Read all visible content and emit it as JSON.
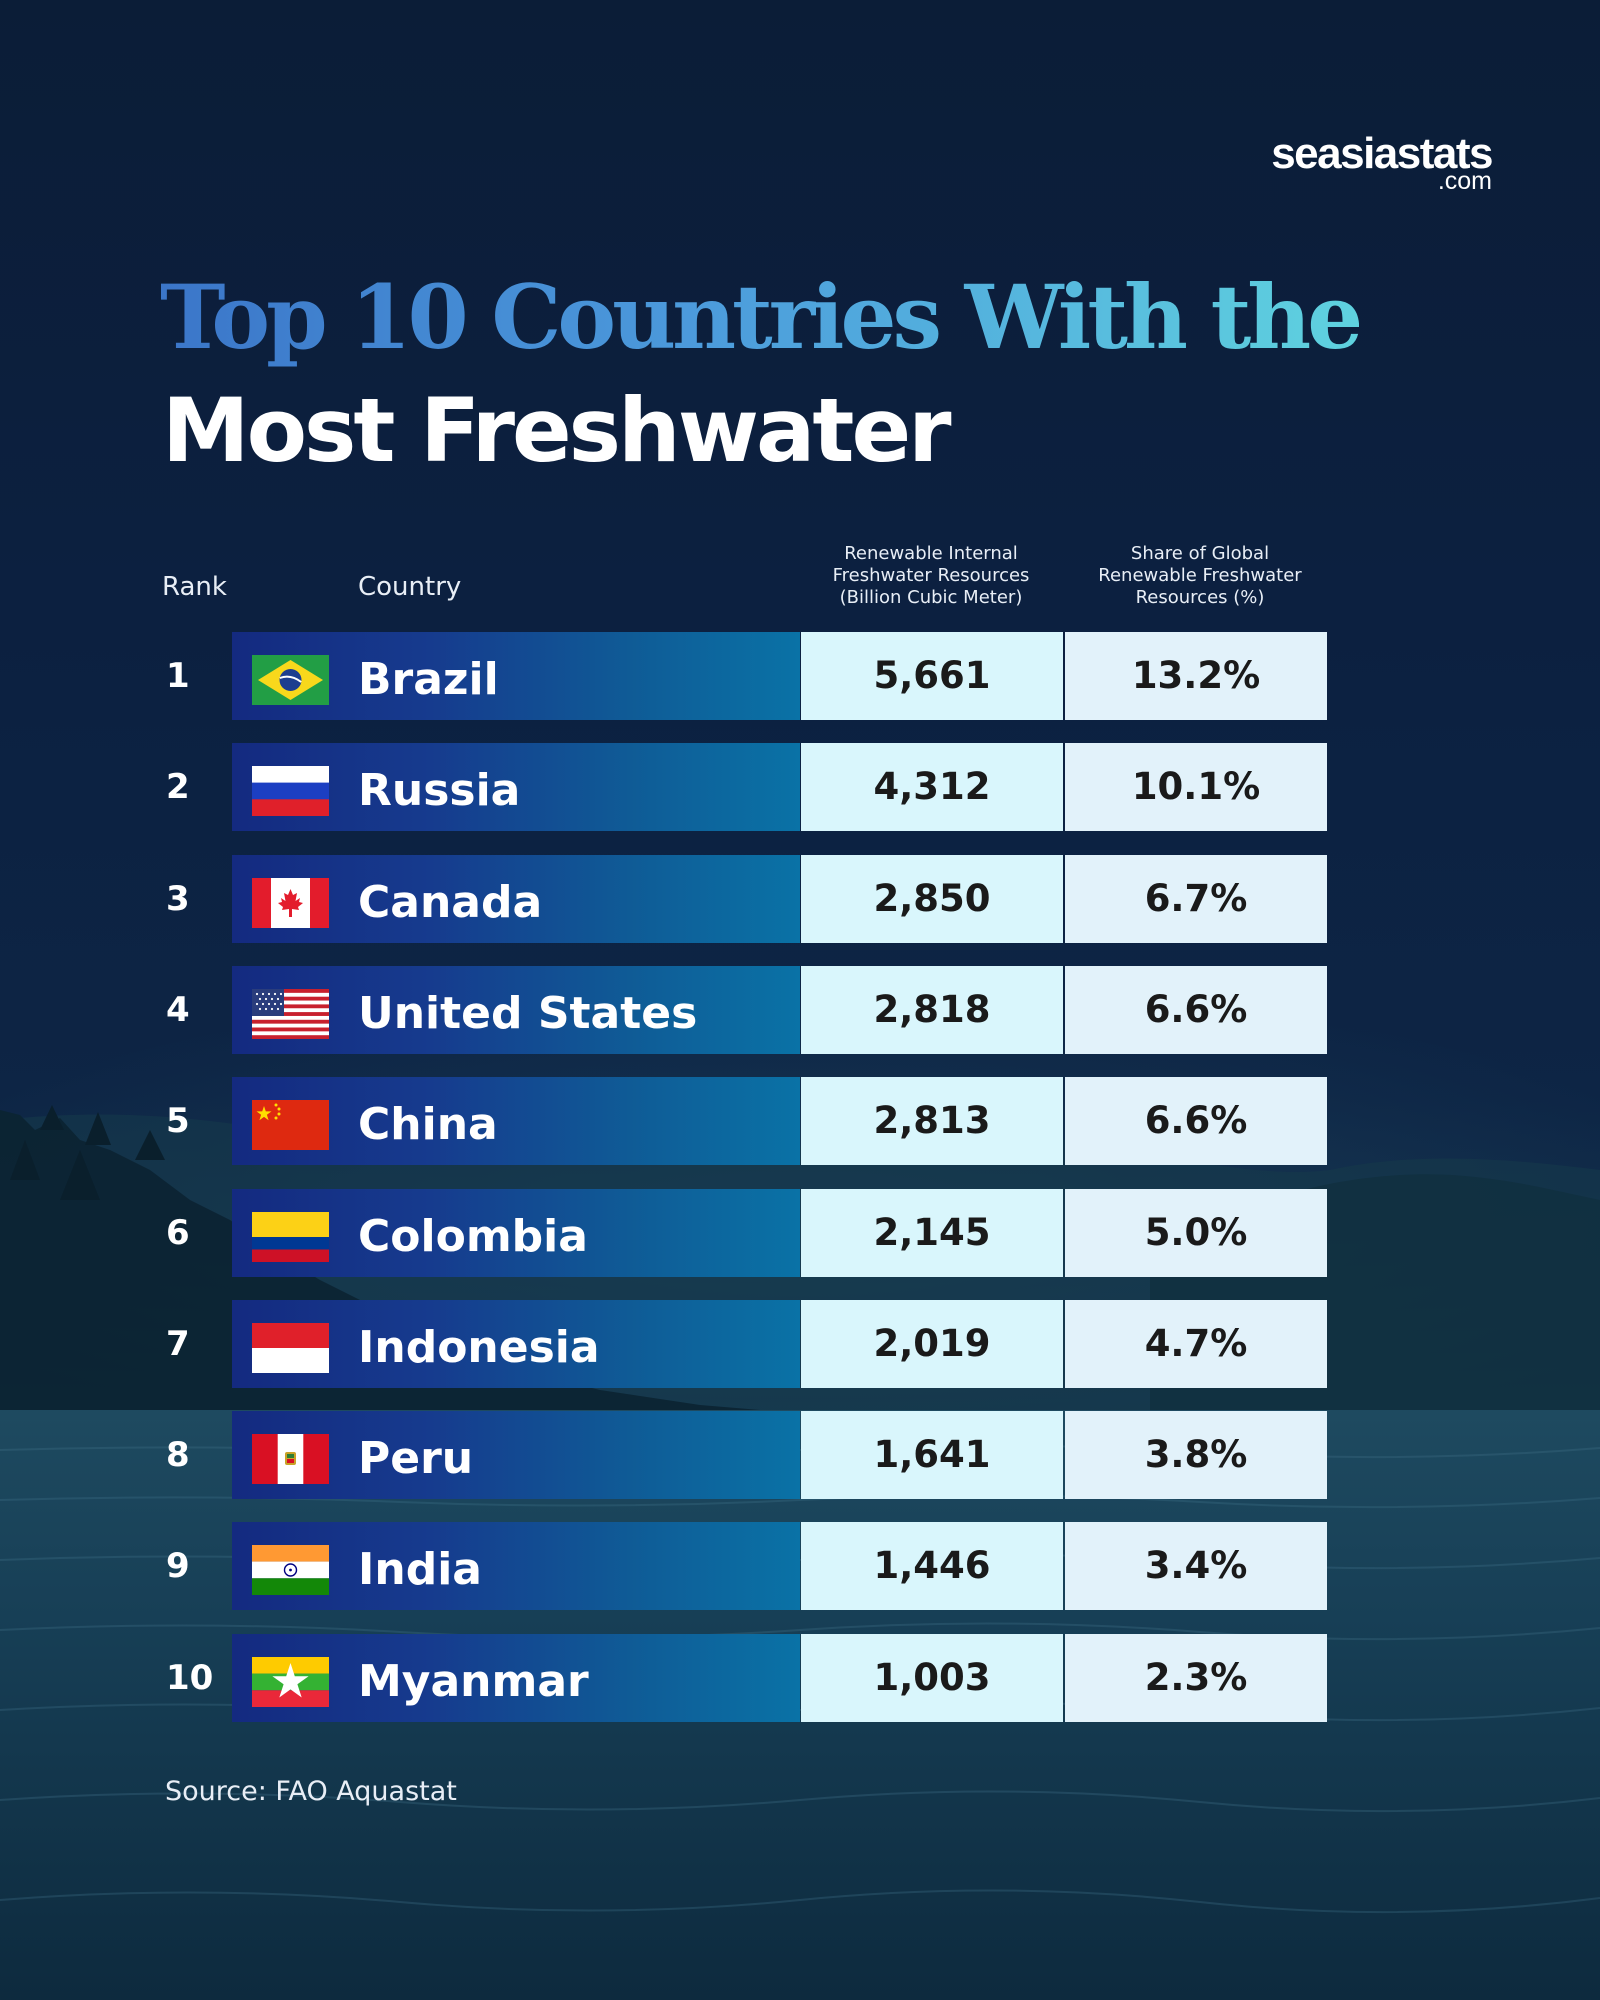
{
  "brand": {
    "name": "seasiastats",
    "domain": ".com"
  },
  "title": {
    "line1": "Top 10 Countries With the",
    "line2": "Most Freshwater"
  },
  "headers": {
    "rank": "Rank",
    "country": "Country",
    "resources": "Renewable Internal\nFreshwater Resources\n(Billion Cubic Meter)",
    "share": "Share of Global\nRenewable Freshwater\nResources (%)"
  },
  "source": "Source: FAO Aquastat",
  "chart_data": {
    "type": "table",
    "columns": [
      "Rank",
      "Country",
      "Renewable Internal Freshwater Resources (Billion Cubic Meter)",
      "Share of Global Renewable Freshwater Resources (%)"
    ],
    "rows": [
      {
        "rank": "1",
        "country": "Brazil",
        "resources": "5,661",
        "share": "13.2%",
        "flag": "brazil-flag"
      },
      {
        "rank": "2",
        "country": "Russia",
        "resources": "4,312",
        "share": "10.1%",
        "flag": "russia-flag"
      },
      {
        "rank": "3",
        "country": "Canada",
        "resources": "2,850",
        "share": "6.7%",
        "flag": "canada-flag"
      },
      {
        "rank": "4",
        "country": "United States",
        "resources": "2,818",
        "share": "6.6%",
        "flag": "united-states-flag"
      },
      {
        "rank": "5",
        "country": "China",
        "resources": "2,813",
        "share": "6.6%",
        "flag": "china-flag"
      },
      {
        "rank": "6",
        "country": "Colombia",
        "resources": "2,145",
        "share": "5.0%",
        "flag": "colombia-flag"
      },
      {
        "rank": "7",
        "country": "Indonesia",
        "resources": "2,019",
        "share": "4.7%",
        "flag": "indonesia-flag"
      },
      {
        "rank": "8",
        "country": "Peru",
        "resources": "1,641",
        "share": "3.8%",
        "flag": "peru-flag"
      },
      {
        "rank": "9",
        "country": "India",
        "resources": "1,446",
        "share": "3.4%",
        "flag": "india-flag"
      },
      {
        "rank": "10",
        "country": "Myanmar",
        "resources": "1,003",
        "share": "2.3%",
        "flag": "myanmar-flag"
      }
    ]
  }
}
